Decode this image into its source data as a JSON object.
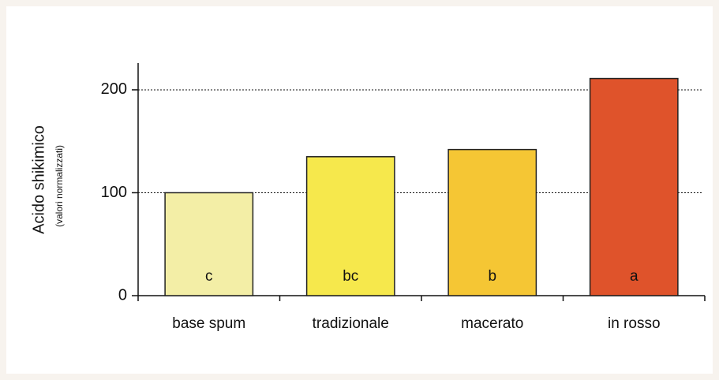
{
  "chart_data": {
    "type": "bar",
    "y_label": "Acido shikimico",
    "y_sublabel": "(valori normalizzati)",
    "categories": [
      "base spum",
      "tradizionale",
      "macerato",
      "in rosso"
    ],
    "values": [
      100,
      135,
      142,
      211
    ],
    "colors": [
      "#f3eea6",
      "#f6e84c",
      "#f5c634",
      "#df532b"
    ],
    "annotations": [
      "c",
      "bc",
      "b",
      "a"
    ],
    "ylim": [
      0,
      226
    ],
    "yticks": [
      0,
      100,
      200
    ],
    "grid": true
  }
}
